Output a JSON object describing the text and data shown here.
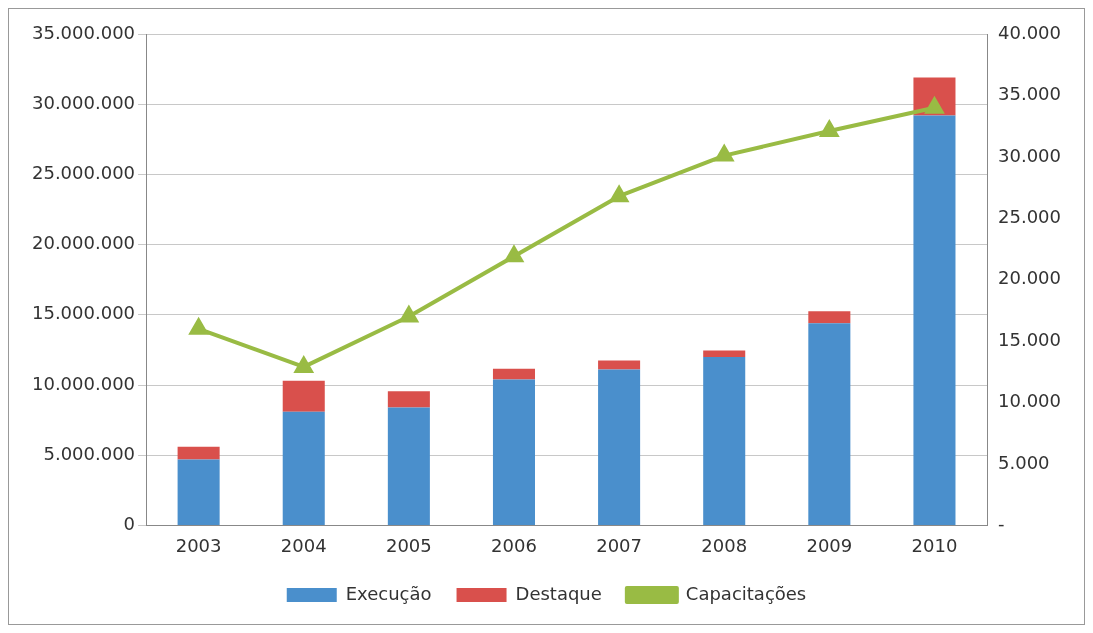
{
  "chart_data": {
    "type": "bar",
    "stacked": true,
    "categories": [
      "2003",
      "2004",
      "2005",
      "2006",
      "2007",
      "2008",
      "2009",
      "2010"
    ],
    "series": [
      {
        "name": "Execução",
        "color": "#4a8fcc",
        "values": [
          4700000,
          8100000,
          8400000,
          10400000,
          11100000,
          12000000,
          14400000,
          29200000
        ]
      },
      {
        "name": "Destaque",
        "color": "#d9504c",
        "values": [
          900000,
          2200000,
          1150000,
          750000,
          650000,
          450000,
          850000,
          2700000
        ]
      },
      {
        "name": "Capacitações",
        "type": "line",
        "axis": "y2",
        "color": "#99bb44",
        "marker": "triangle",
        "values": [
          16000,
          12900,
          17000,
          21900,
          26800,
          30100,
          32100,
          34000
        ]
      }
    ],
    "ylim": [
      0,
      35000000
    ],
    "yticks": [
      0,
      {
        "value": 5000000,
        "label": "5.000.000"
      },
      {
        "value": 10000000,
        "label": "10.000.000"
      },
      {
        "value": 15000000,
        "label": "15.000.000"
      },
      {
        "value": 20000000,
        "label": "20.000.000"
      },
      {
        "value": 25000000,
        "label": "25.000.000"
      },
      {
        "value": 30000000,
        "label": "30.000.000"
      },
      {
        "value": 35000000,
        "label": "35.000.000"
      }
    ],
    "y2lim": [
      0,
      40000
    ],
    "y2ticks": [
      {
        "value": 0,
        "label": "-"
      },
      {
        "value": 5000,
        "label": "5.000"
      },
      {
        "value": 10000,
        "label": "10.000"
      },
      {
        "value": 15000,
        "label": "15.000"
      },
      {
        "value": 20000,
        "label": "20.000"
      },
      {
        "value": 25000,
        "label": "25.000"
      },
      {
        "value": 30000,
        "label": "30.000"
      },
      {
        "value": 35000,
        "label": "35.000"
      },
      {
        "value": 40000,
        "label": "40.000"
      }
    ],
    "grid": "y",
    "legend": "bottom"
  }
}
